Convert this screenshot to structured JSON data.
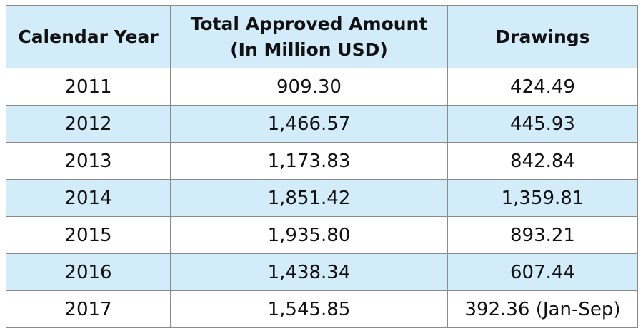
{
  "colors": {
    "header_bg": "#d2ecfa",
    "band_bg": "#d2ecfa",
    "plain_bg": "#ffffff",
    "border": "#8a8a8a",
    "text": "#111111"
  },
  "chart_data": {
    "type": "table",
    "columns": [
      [
        "Calendar Year"
      ],
      [
        "Total Approved Amount",
        "(In Million USD)"
      ],
      [
        "Drawings"
      ]
    ],
    "rows": [
      [
        "2011",
        "909.30",
        "424.49"
      ],
      [
        "2012",
        "1,466.57",
        "445.93"
      ],
      [
        "2013",
        "1,173.83",
        "842.84"
      ],
      [
        "2014",
        "1,851.42",
        "1,359.81"
      ],
      [
        "2015",
        "1,935.80",
        "893.21"
      ],
      [
        "2016",
        "1,438.34",
        "607.44"
      ],
      [
        "2017",
        "1,545.85",
        "392.36 (Jan-Sep)"
      ]
    ]
  }
}
